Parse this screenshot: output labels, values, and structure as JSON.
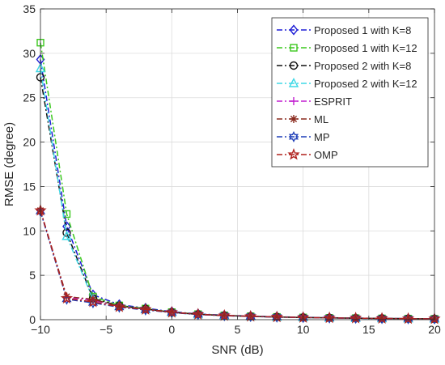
{
  "chart_data": {
    "type": "line",
    "title": "",
    "xlabel": "SNR (dB)",
    "ylabel": "RMSE (degree)",
    "xlim": [
      -10,
      20
    ],
    "ylim": [
      0,
      35
    ],
    "xticks": [
      -10,
      -5,
      0,
      5,
      10,
      15,
      20
    ],
    "yticks": [
      0,
      5,
      10,
      15,
      20,
      25,
      30,
      35
    ],
    "grid": true,
    "legend_position": "top-right",
    "x": [
      -10,
      -8,
      -6,
      -4,
      -2,
      0,
      2,
      4,
      6,
      8,
      10,
      12,
      14,
      16,
      18,
      20
    ],
    "series": [
      {
        "name": "Proposed 1 with K=8",
        "color": "#1f1fd6",
        "marker": "diamond",
        "values": [
          29.3,
          10.5,
          2.8,
          1.7,
          1.3,
          0.9,
          0.65,
          0.5,
          0.4,
          0.33,
          0.27,
          0.22,
          0.18,
          0.15,
          0.12,
          0.1
        ]
      },
      {
        "name": "Proposed 1 with K=12",
        "color": "#3cc81e",
        "marker": "square",
        "values": [
          31.2,
          11.9,
          2.6,
          1.6,
          1.25,
          0.85,
          0.62,
          0.48,
          0.38,
          0.31,
          0.25,
          0.2,
          0.17,
          0.14,
          0.12,
          0.1
        ]
      },
      {
        "name": "Proposed 2 with K=8",
        "color": "#111111",
        "marker": "circle",
        "values": [
          27.3,
          9.8,
          2.4,
          1.55,
          1.2,
          0.82,
          0.6,
          0.46,
          0.37,
          0.3,
          0.24,
          0.2,
          0.16,
          0.14,
          0.11,
          0.09
        ]
      },
      {
        "name": "Proposed 2 with K=12",
        "color": "#3ed8e6",
        "marker": "triangle",
        "values": [
          28.3,
          9.4,
          2.3,
          1.5,
          1.15,
          0.8,
          0.58,
          0.45,
          0.36,
          0.29,
          0.23,
          0.19,
          0.16,
          0.13,
          0.11,
          0.09
        ]
      },
      {
        "name": "ESPRIT",
        "color": "#c21fd0",
        "marker": "plus",
        "values": [
          12.3,
          2.5,
          2.2,
          1.45,
          1.15,
          0.82,
          0.6,
          0.47,
          0.38,
          0.31,
          0.25,
          0.21,
          0.17,
          0.14,
          0.12,
          0.1
        ]
      },
      {
        "name": "ML",
        "color": "#8a2a1e",
        "marker": "asterisk",
        "values": [
          12.3,
          2.6,
          2.3,
          1.5,
          1.2,
          0.85,
          0.62,
          0.48,
          0.39,
          0.31,
          0.25,
          0.21,
          0.17,
          0.14,
          0.12,
          0.1
        ]
      },
      {
        "name": "MP",
        "color": "#1f3fb8",
        "marker": "hexagram",
        "values": [
          12.2,
          2.3,
          1.9,
          1.4,
          1.1,
          0.8,
          0.58,
          0.45,
          0.36,
          0.29,
          0.24,
          0.2,
          0.16,
          0.13,
          0.11,
          0.09
        ]
      },
      {
        "name": "OMP",
        "color": "#b0201c",
        "marker": "pentagram",
        "values": [
          12.3,
          2.4,
          2.0,
          1.45,
          1.15,
          0.82,
          0.6,
          0.46,
          0.37,
          0.3,
          0.24,
          0.2,
          0.17,
          0.14,
          0.11,
          0.09
        ]
      }
    ]
  }
}
